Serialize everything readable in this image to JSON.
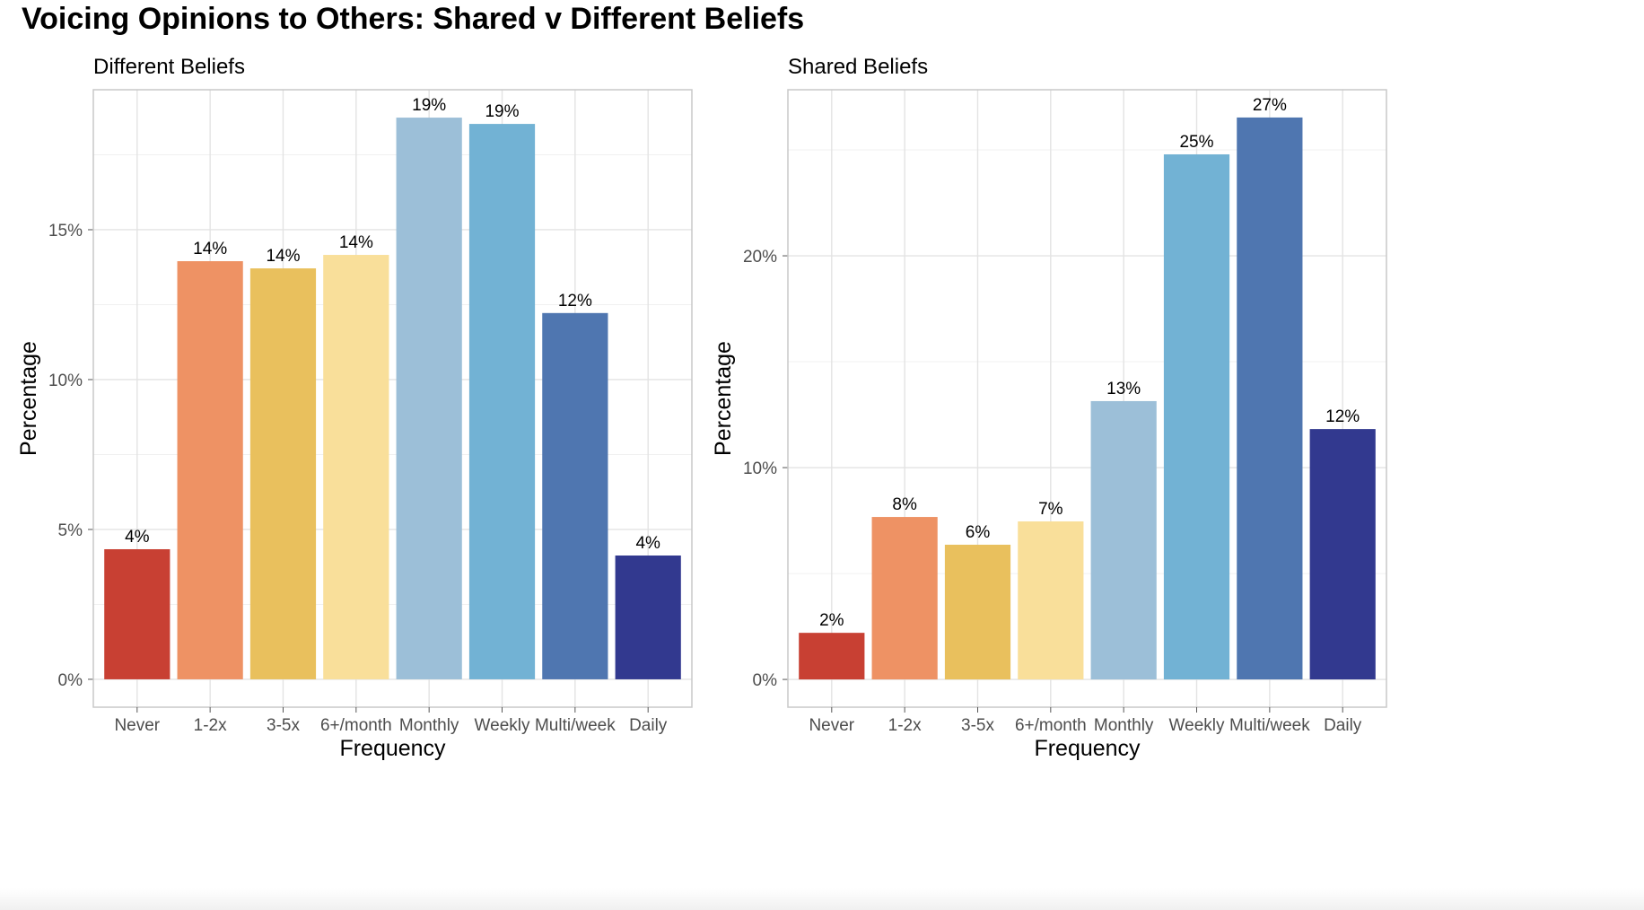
{
  "chart_data": [
    {
      "type": "bar",
      "title": "Different Beliefs",
      "xlabel": "Frequency",
      "ylabel": "Percentage",
      "categories": [
        "Never",
        "1-2x",
        "3-5x",
        "6+/month",
        "Monthly",
        "Weekly",
        "Multi/week",
        "Daily"
      ],
      "values": [
        4.34,
        13.95,
        13.71,
        14.16,
        18.74,
        18.53,
        12.22,
        4.13
      ],
      "data_labels": [
        "4%",
        "14%",
        "14%",
        "14%",
        "19%",
        "19%",
        "12%",
        "4%"
      ],
      "colors": [
        "#c84033",
        "#ee9264",
        "#e9c05d",
        "#f9df9a",
        "#9cbfd8",
        "#72b2d4",
        "#4f76b0",
        "#32398f"
      ],
      "yticks": [
        0,
        5,
        10,
        15
      ],
      "ytick_labels": [
        "0%",
        "5%",
        "10%",
        "15%"
      ],
      "ylim": [
        -0.93,
        19.67
      ],
      "grid": true
    },
    {
      "type": "bar",
      "title": "Shared Beliefs",
      "xlabel": "Frequency",
      "ylabel": "Percentage",
      "categories": [
        "Never",
        "1-2x",
        "3-5x",
        "6+/month",
        "Monthly",
        "Weekly",
        "Multi/week",
        "Daily"
      ],
      "values": [
        2.2,
        7.67,
        6.36,
        7.46,
        13.14,
        24.79,
        26.53,
        11.82
      ],
      "data_labels": [
        "2%",
        "8%",
        "6%",
        "7%",
        "13%",
        "25%",
        "27%",
        "12%"
      ],
      "colors": [
        "#c84033",
        "#ee9264",
        "#e9c05d",
        "#f9df9a",
        "#9cbfd8",
        "#72b2d4",
        "#4f76b0",
        "#32398f"
      ],
      "yticks": [
        0,
        10,
        20
      ],
      "ytick_labels": [
        "0%",
        "10%",
        "20%"
      ],
      "ylim": [
        -1.31,
        27.84
      ],
      "grid": true
    }
  ],
  "figure": {
    "title": "Voicing Opinions to Others: Shared v Different Beliefs"
  }
}
